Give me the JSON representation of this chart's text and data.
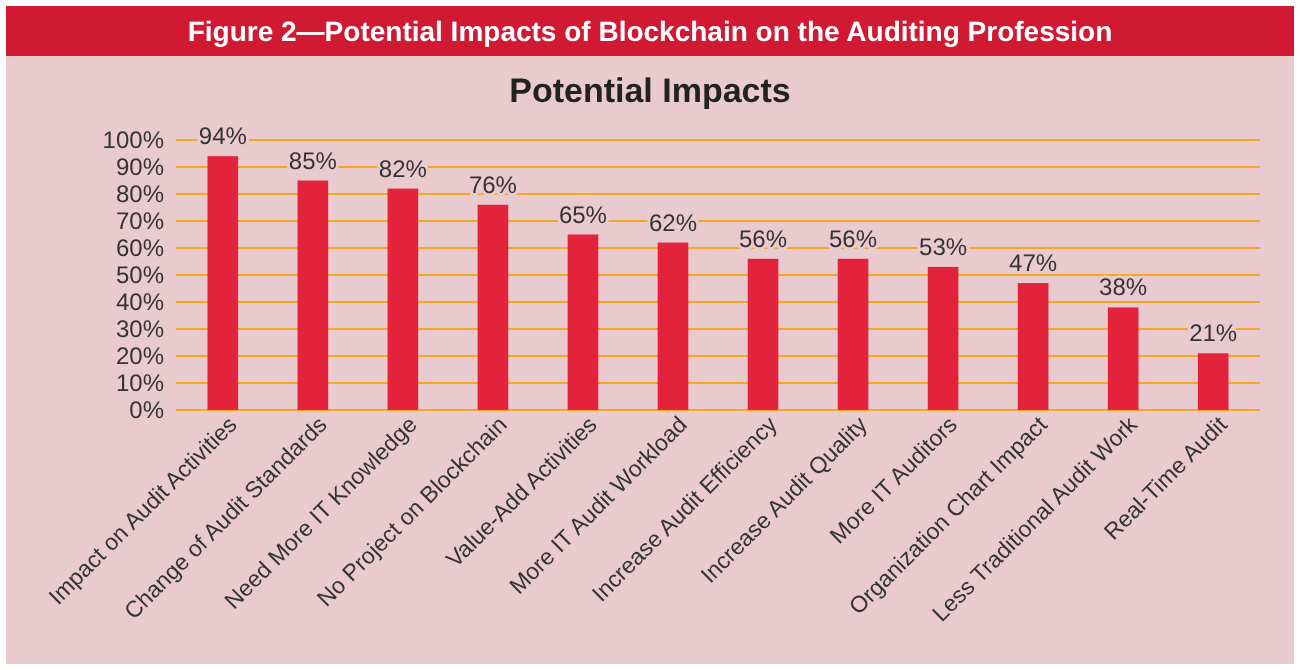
{
  "chart_data": {
    "type": "bar",
    "title": "Figure 2—Potential Impacts of Blockchain on the Auditing Profession",
    "subtitle": "Potential Impacts",
    "categories": [
      "Impact on Audit Activities",
      "Change of Audit Standards",
      "Need More IT Knowledge",
      "No Project on Blockchain",
      "Value-Add Activities",
      "More IT Audit Workload",
      "Increase Audit Efficiency",
      "Increase Audit Quality",
      "More IT Auditors",
      "Organization Chart Impact",
      "Less Traditional Audit Work",
      "Real-Time Audit"
    ],
    "values": [
      94,
      85,
      82,
      76,
      65,
      62,
      56,
      56,
      53,
      47,
      38,
      21
    ],
    "value_labels": [
      "94%",
      "85%",
      "82%",
      "76%",
      "65%",
      "62%",
      "56%",
      "56%",
      "53%",
      "47%",
      "38%",
      "21%"
    ],
    "color": "#e3223c",
    "ylim": [
      0,
      100
    ],
    "yticks": [
      {
        "value": 0,
        "label": "0%"
      },
      {
        "value": 10,
        "label": "10%"
      },
      {
        "value": 20,
        "label": "20%"
      },
      {
        "value": 30,
        "label": "30%"
      },
      {
        "value": 40,
        "label": "40%"
      },
      {
        "value": 50,
        "label": "50%"
      },
      {
        "value": 60,
        "label": "60%"
      },
      {
        "value": 70,
        "label": "70%"
      },
      {
        "value": 80,
        "label": "80%"
      },
      {
        "value": 90,
        "label": "90%"
      },
      {
        "value": 100,
        "label": "100%"
      }
    ],
    "grid": "y"
  }
}
